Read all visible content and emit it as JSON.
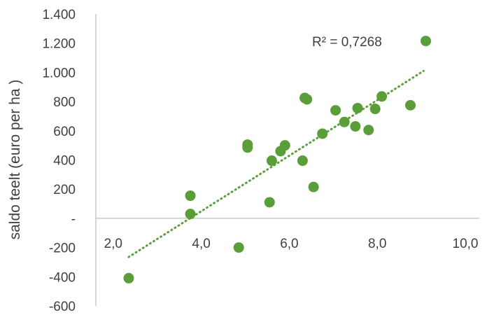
{
  "chart_data": {
    "type": "scatter",
    "title": "",
    "ylabel": "saldo teelt  (euro per ha )",
    "xlabel": "",
    "xlim": [
      0,
      10
    ],
    "ylim": [
      -600,
      1400
    ],
    "x_ticks": [
      {
        "value": 2,
        "label": "2,0"
      },
      {
        "value": 4,
        "label": "4,0"
      },
      {
        "value": 6,
        "label": "6,0"
      },
      {
        "value": 8,
        "label": "8,0"
      },
      {
        "value": 10,
        "label": "10,0"
      }
    ],
    "y_ticks": [
      {
        "value": 1400,
        "label": "1.400"
      },
      {
        "value": 1200,
        "label": "1.200"
      },
      {
        "value": 1000,
        "label": "1.000"
      },
      {
        "value": 800,
        "label": "800"
      },
      {
        "value": 600,
        "label": "600"
      },
      {
        "value": 400,
        "label": "400"
      },
      {
        "value": 200,
        "label": "200"
      },
      {
        "value": 0,
        "label": "-"
      },
      {
        "value": -200,
        "label": "-200"
      },
      {
        "value": -400,
        "label": "-400"
      },
      {
        "value": -600,
        "label": "-600"
      }
    ],
    "points": [
      {
        "x": 2.4,
        "y": -410
      },
      {
        "x": 3.8,
        "y": 30
      },
      {
        "x": 3.8,
        "y": 155
      },
      {
        "x": 4.9,
        "y": -200
      },
      {
        "x": 5.1,
        "y": 505
      },
      {
        "x": 5.1,
        "y": 485
      },
      {
        "x": 5.6,
        "y": 110
      },
      {
        "x": 5.65,
        "y": 395
      },
      {
        "x": 5.85,
        "y": 460
      },
      {
        "x": 5.95,
        "y": 500
      },
      {
        "x": 6.35,
        "y": 395
      },
      {
        "x": 6.4,
        "y": 825
      },
      {
        "x": 6.45,
        "y": 815
      },
      {
        "x": 6.6,
        "y": 215
      },
      {
        "x": 6.8,
        "y": 580
      },
      {
        "x": 7.1,
        "y": 740
      },
      {
        "x": 7.3,
        "y": 660
      },
      {
        "x": 7.55,
        "y": 630
      },
      {
        "x": 7.6,
        "y": 755
      },
      {
        "x": 7.85,
        "y": 605
      },
      {
        "x": 8.0,
        "y": 750
      },
      {
        "x": 8.15,
        "y": 835
      },
      {
        "x": 8.8,
        "y": 775
      },
      {
        "x": 9.15,
        "y": 1215
      }
    ],
    "trendline": {
      "x": [
        2.4,
        9.1
      ],
      "y": [
        -265,
        1010
      ]
    },
    "r_squared_label": "R² = 0,7268",
    "grid": false,
    "colors": {
      "points": "#5a9e3a",
      "trendline": "#5a9e3a",
      "axis": "#bfbfbf",
      "text": "#404040"
    }
  }
}
